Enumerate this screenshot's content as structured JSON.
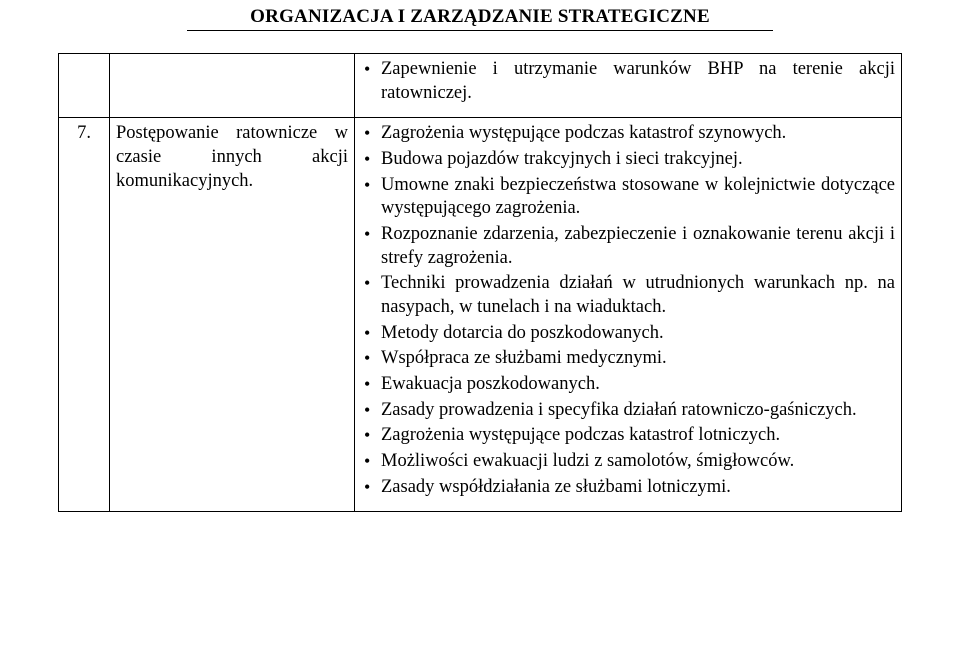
{
  "header": {
    "title": "ORGANIZACJA I ZARZĄDZANIE STRATEGICZNE"
  },
  "table": {
    "rows": [
      {
        "num": "",
        "topic": "",
        "items": [
          "Zapewnienie i utrzymanie warunków BHP na terenie akcji ratowniczej."
        ]
      },
      {
        "num": "7.",
        "topic": "Postępowanie ratownicze w czasie innych akcji komunikacyjnych.",
        "items": [
          "Zagrożenia występujące podczas katastrof szynowych.",
          "Budowa pojazdów trakcyjnych i sieci trakcyjnej.",
          "Umowne znaki bezpieczeństwa stosowane w kolejnictwie dotyczące występującego zagrożenia.",
          "Rozpoznanie zdarzenia, zabezpieczenie i oznakowanie terenu akcji i strefy zagrożenia.",
          "Techniki prowadzenia działań w utrudnionych warunkach np. na nasypach, w tunelach i na wiaduktach.",
          "Metody dotarcia do poszkodowanych.",
          "Współpraca ze służbami medycznymi.",
          "Ewakuacja poszkodowanych.",
          "Zasady prowadzenia i specyfika działań ratowniczo-gaśniczych.",
          "Zagrożenia występujące podczas katastrof lotniczych.",
          "Możliwości ewakuacji ludzi z samolotów, śmigłowców.",
          "Zasady współdziałania ze służbami lotniczymi."
        ]
      }
    ]
  }
}
